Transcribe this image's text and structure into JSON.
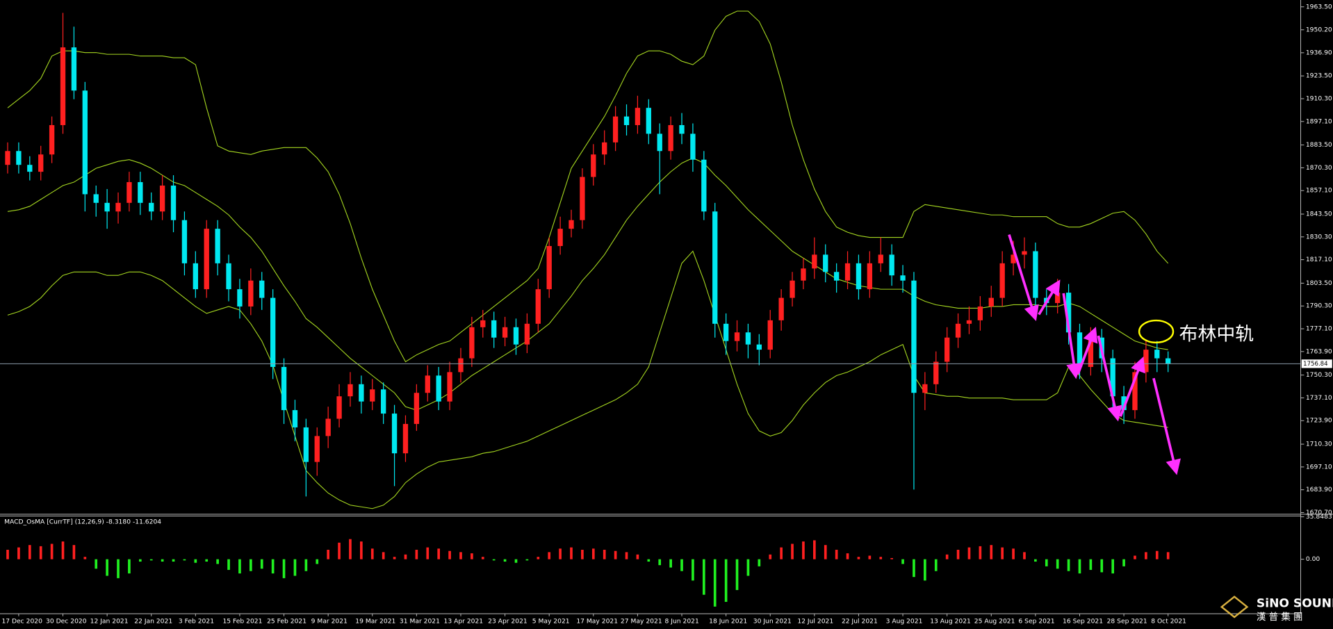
{
  "chart_data": [
    {
      "type": "candlestick",
      "categories": [
        null,
        "17 Dec 2020",
        null,
        null,
        null,
        "30 Dec 2020",
        null,
        null,
        null,
        "12 Jan 2021",
        null,
        null,
        null,
        "22 Jan 2021",
        null,
        null,
        null,
        "3 Feb 2021",
        null,
        null,
        null,
        "15 Feb 2021",
        null,
        null,
        null,
        "25 Feb 2021",
        null,
        null,
        null,
        "9 Mar 2021",
        null,
        null,
        null,
        "19 Mar 2021",
        null,
        null,
        null,
        "31 Mar 2021",
        null,
        null,
        null,
        "13 Apr 2021",
        null,
        null,
        null,
        "23 Apr 2021",
        null,
        null,
        null,
        "5 May 2021",
        null,
        null,
        null,
        "17 May 2021",
        null,
        null,
        null,
        "27 May 2021",
        null,
        null,
        null,
        "8 Jun 2021",
        null,
        null,
        null,
        "18 Jun 2021",
        null,
        null,
        null,
        "30 Jun 2021",
        null,
        null,
        null,
        "12 Jul 2021",
        null,
        null,
        null,
        "22 Jul 2021",
        null,
        null,
        null,
        "3 Aug 2021",
        null,
        null,
        null,
        "13 Aug 2021",
        null,
        null,
        null,
        "25 Aug 2021",
        null,
        null,
        null,
        "6 Sep 2021",
        null,
        null,
        null,
        "16 Sep 2021",
        null,
        null,
        null,
        "28 Sep 2021",
        null,
        null,
        null,
        "8 Oct 2021"
      ],
      "open": [
        1872,
        1880,
        1872,
        1868,
        1878,
        1895,
        1940,
        1915,
        1855,
        1850,
        1845,
        1850,
        1862,
        1850,
        1845,
        1860,
        1840,
        1815,
        1800,
        1835,
        1815,
        1800,
        1790,
        1805,
        1795,
        1755,
        1730,
        1720,
        1700,
        1715,
        1725,
        1738,
        1745,
        1735,
        1742,
        1728,
        1705,
        1722,
        1740,
        1750,
        1735,
        1752,
        1760,
        1778,
        1782,
        1772,
        1778,
        1768,
        1780,
        1800,
        1825,
        1835,
        1840,
        1865,
        1878,
        1885,
        1900,
        1895,
        1905,
        1890,
        1880,
        1895,
        1890,
        1875,
        1845,
        1780,
        1770,
        1775,
        1768,
        1765,
        1782,
        1795,
        1805,
        1812,
        1820,
        1810,
        1805,
        1815,
        1800,
        1815,
        1820,
        1808,
        1805,
        1740,
        1745,
        1758,
        1772,
        1780,
        1782,
        1790,
        1795,
        1815,
        1820,
        1822,
        1795,
        1792,
        1798,
        1775,
        1755,
        1772,
        1760,
        1738,
        1730,
        1752,
        1765,
        1760
      ],
      "high": [
        1885,
        1885,
        1877,
        1883,
        1900,
        1960,
        1952,
        1920,
        1860,
        1858,
        1856,
        1868,
        1868,
        1856,
        1866,
        1866,
        1845,
        1822,
        1840,
        1840,
        1820,
        1806,
        1812,
        1810,
        1800,
        1760,
        1736,
        1725,
        1720,
        1732,
        1745,
        1752,
        1750,
        1748,
        1746,
        1733,
        1727,
        1745,
        1756,
        1755,
        1758,
        1766,
        1784,
        1788,
        1787,
        1784,
        1783,
        1786,
        1806,
        1830,
        1842,
        1846,
        1870,
        1884,
        1892,
        1906,
        1907,
        1912,
        1910,
        1896,
        1900,
        1902,
        1896,
        1880,
        1850,
        1786,
        1782,
        1780,
        1774,
        1788,
        1800,
        1810,
        1818,
        1830,
        1826,
        1815,
        1822,
        1820,
        1822,
        1830,
        1826,
        1814,
        1810,
        1752,
        1764,
        1778,
        1786,
        1790,
        1796,
        1802,
        1822,
        1828,
        1830,
        1827,
        1800,
        1806,
        1803,
        1780,
        1778,
        1777,
        1765,
        1744,
        1758,
        1770,
        1770,
        1764
      ],
      "low": [
        1867,
        1867,
        1863,
        1863,
        1873,
        1890,
        1910,
        1845,
        1842,
        1835,
        1838,
        1845,
        1843,
        1840,
        1840,
        1833,
        1808,
        1795,
        1795,
        1808,
        1793,
        1783,
        1785,
        1788,
        1748,
        1722,
        1712,
        1680,
        1692,
        1708,
        1720,
        1732,
        1728,
        1730,
        1722,
        1686,
        1700,
        1718,
        1735,
        1730,
        1730,
        1746,
        1755,
        1772,
        1766,
        1767,
        1762,
        1763,
        1775,
        1795,
        1820,
        1830,
        1835,
        1860,
        1872,
        1880,
        1889,
        1890,
        1884,
        1855,
        1875,
        1884,
        1868,
        1840,
        1772,
        1762,
        1764,
        1760,
        1756,
        1760,
        1776,
        1790,
        1800,
        1806,
        1804,
        1798,
        1800,
        1794,
        1795,
        1810,
        1802,
        1798,
        1684,
        1730,
        1740,
        1752,
        1766,
        1774,
        1776,
        1784,
        1790,
        1808,
        1812,
        1788,
        1785,
        1786,
        1768,
        1748,
        1750,
        1752,
        1730,
        1722,
        1725,
        1746,
        1752,
        1752
      ],
      "close": [
        1880,
        1872,
        1868,
        1878,
        1895,
        1940,
        1915,
        1855,
        1850,
        1845,
        1850,
        1862,
        1850,
        1845,
        1860,
        1840,
        1815,
        1800,
        1835,
        1815,
        1800,
        1790,
        1805,
        1795,
        1755,
        1730,
        1720,
        1700,
        1715,
        1725,
        1738,
        1745,
        1735,
        1742,
        1728,
        1705,
        1722,
        1740,
        1750,
        1735,
        1752,
        1760,
        1778,
        1782,
        1772,
        1778,
        1768,
        1780,
        1800,
        1825,
        1835,
        1840,
        1865,
        1878,
        1885,
        1900,
        1895,
        1905,
        1890,
        1880,
        1895,
        1890,
        1875,
        1845,
        1780,
        1770,
        1775,
        1768,
        1765,
        1782,
        1795,
        1805,
        1812,
        1820,
        1810,
        1805,
        1815,
        1800,
        1815,
        1820,
        1808,
        1805,
        1740,
        1745,
        1758,
        1772,
        1780,
        1782,
        1790,
        1795,
        1815,
        1820,
        1822,
        1795,
        1792,
        1798,
        1775,
        1755,
        1772,
        1760,
        1738,
        1730,
        1752,
        1765,
        1760,
        1757
      ],
      "up_color": "#ff2020",
      "down_color": "#00e8f0",
      "bands": {
        "color": "#a6d820",
        "upper": [
          1905,
          1910,
          1915,
          1922,
          1935,
          1938,
          1938,
          1937,
          1937,
          1936,
          1936,
          1936,
          1935,
          1935,
          1935,
          1934,
          1934,
          1930,
          1905,
          1883,
          1880,
          1879,
          1878,
          1880,
          1881,
          1882,
          1882,
          1882,
          1876,
          1868,
          1855,
          1838,
          1818,
          1800,
          1785,
          1770,
          1758,
          1762,
          1765,
          1768,
          1770,
          1775,
          1780,
          1785,
          1790,
          1795,
          1800,
          1805,
          1812,
          1830,
          1850,
          1870,
          1880,
          1890,
          1900,
          1912,
          1925,
          1935,
          1938,
          1938,
          1936,
          1932,
          1930,
          1935,
          1950,
          1958,
          1961,
          1961,
          1955,
          1942,
          1920,
          1895,
          1875,
          1858,
          1845,
          1836,
          1833,
          1831,
          1830,
          1830,
          1830,
          1830,
          1845,
          1849,
          1848,
          1847,
          1846,
          1845,
          1844,
          1843,
          1843,
          1842,
          1842,
          1842,
          1842,
          1838,
          1836,
          1836,
          1838,
          1841,
          1844,
          1845,
          1840,
          1832,
          1822,
          1815
        ],
        "middle": [
          1845,
          1846,
          1848,
          1852,
          1856,
          1860,
          1862,
          1866,
          1870,
          1872,
          1874,
          1875,
          1873,
          1870,
          1866,
          1862,
          1860,
          1856,
          1852,
          1848,
          1843,
          1836,
          1830,
          1822,
          1812,
          1802,
          1793,
          1783,
          1778,
          1772,
          1766,
          1760,
          1755,
          1750,
          1745,
          1740,
          1732,
          1730,
          1733,
          1736,
          1740,
          1745,
          1750,
          1754,
          1758,
          1762,
          1766,
          1770,
          1775,
          1780,
          1788,
          1796,
          1805,
          1812,
          1820,
          1830,
          1840,
          1848,
          1855,
          1862,
          1868,
          1873,
          1876,
          1873,
          1866,
          1860,
          1853,
          1846,
          1840,
          1834,
          1828,
          1822,
          1818,
          1814,
          1810,
          1806,
          1804,
          1802,
          1801,
          1800,
          1800,
          1800,
          1796,
          1793,
          1791,
          1790,
          1789,
          1789,
          1789,
          1790,
          1790,
          1791,
          1791,
          1791,
          1790,
          1790,
          1792,
          1790,
          1786,
          1782,
          1778,
          1774,
          1770,
          1768,
          1766,
          1765
        ],
        "lower": [
          1785,
          1787,
          1790,
          1795,
          1802,
          1808,
          1810,
          1810,
          1810,
          1808,
          1808,
          1810,
          1810,
          1808,
          1805,
          1800,
          1795,
          1790,
          1786,
          1788,
          1790,
          1788,
          1780,
          1770,
          1756,
          1735,
          1715,
          1695,
          1688,
          1682,
          1678,
          1675,
          1674,
          1673,
          1675,
          1680,
          1688,
          1693,
          1697,
          1700,
          1701,
          1702,
          1703,
          1705,
          1706,
          1708,
          1710,
          1712,
          1715,
          1718,
          1721,
          1724,
          1727,
          1730,
          1733,
          1736,
          1740,
          1745,
          1755,
          1775,
          1795,
          1815,
          1822,
          1805,
          1785,
          1765,
          1745,
          1728,
          1718,
          1715,
          1717,
          1724,
          1733,
          1740,
          1746,
          1750,
          1752,
          1755,
          1758,
          1762,
          1765,
          1768,
          1750,
          1740,
          1739,
          1738,
          1738,
          1737,
          1737,
          1737,
          1737,
          1736,
          1736,
          1736,
          1736,
          1740,
          1755,
          1750,
          1742,
          1735,
          1728,
          1724,
          1723,
          1722,
          1721,
          1720
        ]
      },
      "ylim": [
        1670.7,
        1963.5
      ],
      "yticks": [
        {
          "value": 1963.5,
          "label": "1963.50"
        },
        {
          "value": 1950.2,
          "label": "1950.20"
        },
        {
          "value": 1936.9,
          "label": "1936.90"
        },
        {
          "value": 1923.5,
          "label": "1923.50"
        },
        {
          "value": 1910.3,
          "label": "1910.30"
        },
        {
          "value": 1897.1,
          "label": "1897.10"
        },
        {
          "value": 1883.5,
          "label": "1883.50"
        },
        {
          "value": 1870.3,
          "label": "1870.30"
        },
        {
          "value": 1857.1,
          "label": "1857.10"
        },
        {
          "value": 1843.5,
          "label": "1843.50"
        },
        {
          "value": 1830.3,
          "label": "1830.30"
        },
        {
          "value": 1817.1,
          "label": "1817.10"
        },
        {
          "value": 1803.5,
          "label": "1803.50"
        },
        {
          "value": 1790.3,
          "label": "1790.30"
        },
        {
          "value": 1777.1,
          "label": "1777.10"
        },
        {
          "value": 1763.9,
          "label": "1763.90"
        },
        {
          "value": 1750.3,
          "label": "1750.30"
        },
        {
          "value": 1737.1,
          "label": "1737.10"
        },
        {
          "value": 1723.9,
          "label": "1723.90"
        },
        {
          "value": 1710.3,
          "label": "1710.30"
        },
        {
          "value": 1697.1,
          "label": "1697.10"
        },
        {
          "value": 1683.9,
          "label": "1683.90"
        },
        {
          "value": 1670.7,
          "label": "1670.70"
        }
      ],
      "current_price": 1756.84,
      "annotation": "布林中轨"
    },
    {
      "type": "bar",
      "title": "MACD_OsMA [CurrTF] (12,26,9) -8.3180 -11.6204",
      "values": [
        8,
        10,
        12,
        11,
        13,
        15,
        12,
        2,
        -8,
        -14,
        -16,
        -12,
        -2,
        -1,
        -2,
        -2,
        -1,
        -3,
        -2,
        -4,
        -9,
        -12,
        -10,
        -8,
        -12,
        -16,
        -14,
        -10,
        -4,
        8,
        14,
        17,
        15,
        9,
        6,
        2,
        4,
        8,
        10,
        9,
        7,
        6,
        5,
        2,
        -1,
        -2,
        -3,
        -1,
        2,
        6,
        9,
        10,
        8,
        9,
        8,
        7,
        6,
        4,
        -2,
        -5,
        -7,
        -10,
        -18,
        -30,
        -40,
        -36,
        -26,
        -14,
        -6,
        4,
        10,
        13,
        15,
        16,
        12,
        8,
        5,
        2,
        3,
        2,
        1,
        -4,
        -15,
        -18,
        -10,
        4,
        8,
        10,
        11,
        12,
        10,
        9,
        6,
        -2,
        -6,
        -8,
        -10,
        -12,
        -9,
        -11,
        -12,
        -6,
        3,
        6,
        7,
        6
      ],
      "pos_color": "#ff2020",
      "neg_color": "#20f020",
      "ylim": [
        -46,
        35.8483
      ],
      "yticks": [
        35.8483,
        {
          "value": 0,
          "label": "0.00"
        }
      ]
    }
  ],
  "watermark": {
    "title": "SiNO SOUND",
    "subtitle": "漢 普 集 團"
  }
}
